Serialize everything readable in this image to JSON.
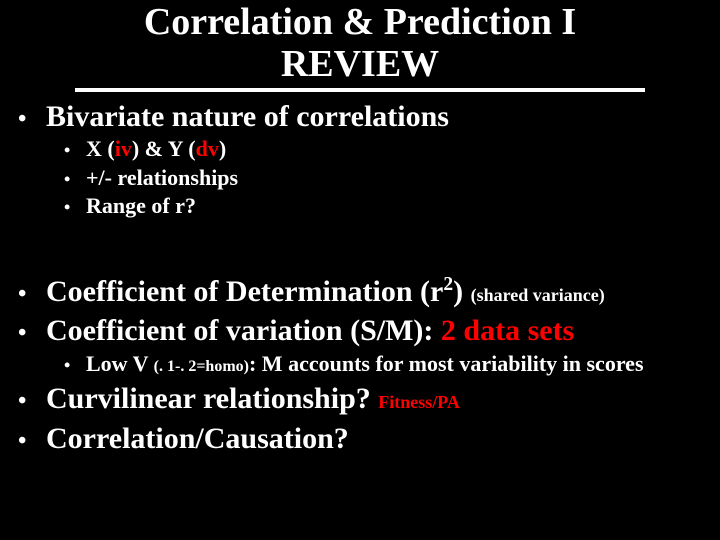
{
  "colors": {
    "background": "#000000",
    "text": "#ffffff",
    "accent": "#ff0000"
  },
  "title": {
    "line1": "Correlation & Prediction I",
    "line2": "REVIEW"
  },
  "b1": {
    "text": "Bivariate nature of correlations",
    "sub1_pre": "X (",
    "sub1_iv": "iv",
    "sub1_mid": ") & Y (",
    "sub1_dv": "dv",
    "sub1_post": ")",
    "sub2": "+/- relationships",
    "sub3": "Range of r?"
  },
  "b2": {
    "pre": "Coefficient of Determination (r",
    "sup": "2",
    "post": ") ",
    "note": "(shared variance)"
  },
  "b3": {
    "pre": "Coefficient of variation (S/M): ",
    "red": "2 data sets",
    "sub_pre": "Low V ",
    "sub_paren": "(. 1-. 2=homo)",
    "sub_post": ": M accounts for most variability in scores"
  },
  "b4": {
    "text": "Curvilinear relationship? ",
    "note": "Fitness/PA"
  },
  "b5": {
    "text": "Correlation/Causation?"
  }
}
